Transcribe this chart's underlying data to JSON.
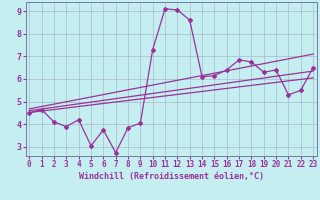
{
  "xlabel": "Windchill (Refroidissement éolien,°C)",
  "bg_color": "#c5eef0",
  "line_color": "#993399",
  "grid_color": "#aabbcc",
  "spine_color": "#7777aa",
  "x_min": 0,
  "x_max": 23,
  "y_min": 3,
  "y_max": 9,
  "data_x": [
    0,
    1,
    2,
    3,
    4,
    5,
    6,
    7,
    8,
    9,
    10,
    11,
    12,
    13,
    14,
    15,
    16,
    17,
    18,
    19,
    20,
    21,
    22,
    23
  ],
  "data_y": [
    4.5,
    4.65,
    4.1,
    3.9,
    4.2,
    3.05,
    3.75,
    2.75,
    3.85,
    4.05,
    7.3,
    9.1,
    9.05,
    8.6,
    6.1,
    6.15,
    6.4,
    6.85,
    6.75,
    6.3,
    6.4,
    5.3,
    5.5,
    6.5
  ],
  "trend1_x": [
    0,
    23
  ],
  "trend1_y": [
    4.52,
    6.05
  ],
  "trend2_x": [
    0,
    23
  ],
  "trend2_y": [
    4.6,
    6.35
  ],
  "trend3_x": [
    0,
    23
  ],
  "trend3_y": [
    4.68,
    7.1
  ],
  "tick_fontsize": 6,
  "label_fontsize": 6
}
